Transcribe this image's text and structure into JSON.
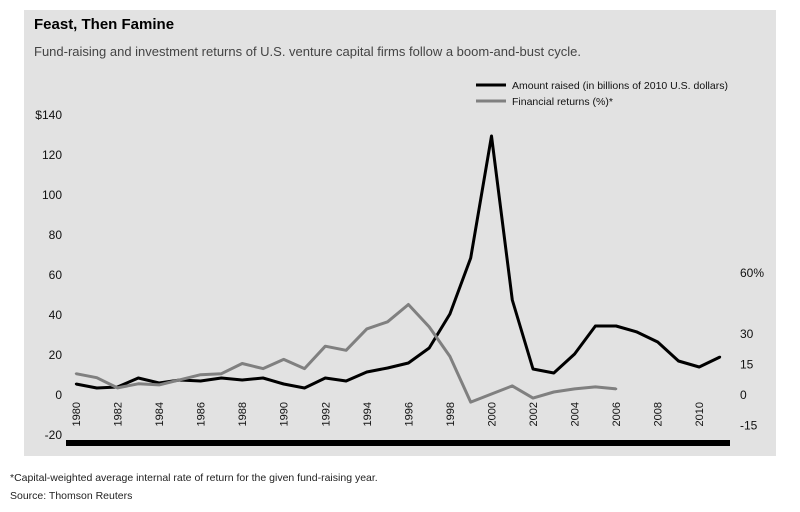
{
  "header": {
    "title": "Feast, Then Famine",
    "subtitle": "Fund-raising and investment returns of U.S. venture capital firms follow a boom-and-bust cycle."
  },
  "footer": {
    "footnote": "*Capital-weighted average internal rate of return for the given fund-raising year.",
    "source": "Source: Thomson Reuters"
  },
  "colors": {
    "panel": "#e2e2e2",
    "raised": "#000000",
    "returns": "#808080",
    "axis": "#000000"
  },
  "chart_data": {
    "type": "line",
    "title": "Feast, Then Famine",
    "subtitle": "Fund-raising and investment returns of U.S. venture capital firms follow a boom-and-bust cycle.",
    "x": [
      1980,
      1981,
      1982,
      1983,
      1984,
      1985,
      1986,
      1987,
      1988,
      1989,
      1990,
      1991,
      1992,
      1993,
      1994,
      1995,
      1996,
      1997,
      1998,
      1999,
      2000,
      2001,
      2002,
      2003,
      2004,
      2005,
      2006,
      2007,
      2008,
      2009,
      2010,
      2011
    ],
    "x_ticks": [
      "1980",
      "1982",
      "1984",
      "1986",
      "1988",
      "1990",
      "1992",
      "1994",
      "1996",
      "1998",
      "2000",
      "2002",
      "2004",
      "2006",
      "2008",
      "2010"
    ],
    "y_left_ticks": [
      "$140",
      "120",
      "100",
      "80",
      "60",
      "40",
      "20",
      "0",
      "-20"
    ],
    "y_left_range": [
      -20,
      140
    ],
    "y_right_ticks": [
      "60%",
      "30",
      "15",
      "0",
      "-15"
    ],
    "y_right_range": [
      -15,
      60
    ],
    "legend_position": "top-right",
    "grid": false,
    "series": [
      {
        "name": "Amount raised (in billions of 2010 U.S. dollars)",
        "axis": "left",
        "x": [
          1980,
          1981,
          1982,
          1983,
          1984,
          1985,
          1986,
          1987,
          1988,
          1989,
          1990,
          1991,
          1992,
          1993,
          1994,
          1995,
          1996,
          1997,
          1998,
          1999,
          2000,
          2001,
          2002,
          2003,
          2004,
          2005,
          2006,
          2007,
          2008,
          2009,
          2010,
          2011
        ],
        "values": [
          5,
          3,
          3.5,
          8,
          5.5,
          7,
          6.5,
          8,
          7,
          8,
          5,
          3,
          8,
          6.5,
          11,
          13,
          15.5,
          23,
          40,
          68,
          129,
          47,
          12.5,
          10.5,
          20,
          34,
          34,
          31,
          26,
          16.5,
          13.5,
          18.5
        ]
      },
      {
        "name": "Financial returns (%)*",
        "axis": "right",
        "x": [
          1980,
          1981,
          1982,
          1983,
          1984,
          1985,
          1986,
          1987,
          1988,
          1989,
          1990,
          1991,
          1992,
          1993,
          1994,
          1995,
          1996,
          1997,
          1998,
          1999,
          2000,
          2001,
          2002,
          2003,
          2004,
          2005,
          2006
        ],
        "values": [
          10,
          8,
          3,
          5,
          4.5,
          7,
          9.5,
          10,
          15,
          12.5,
          17,
          12.5,
          23.5,
          21.5,
          32,
          35.5,
          44,
          33,
          18.5,
          -4,
          0,
          4,
          -2,
          1,
          2.5,
          3.5,
          2.5
        ]
      }
    ]
  }
}
